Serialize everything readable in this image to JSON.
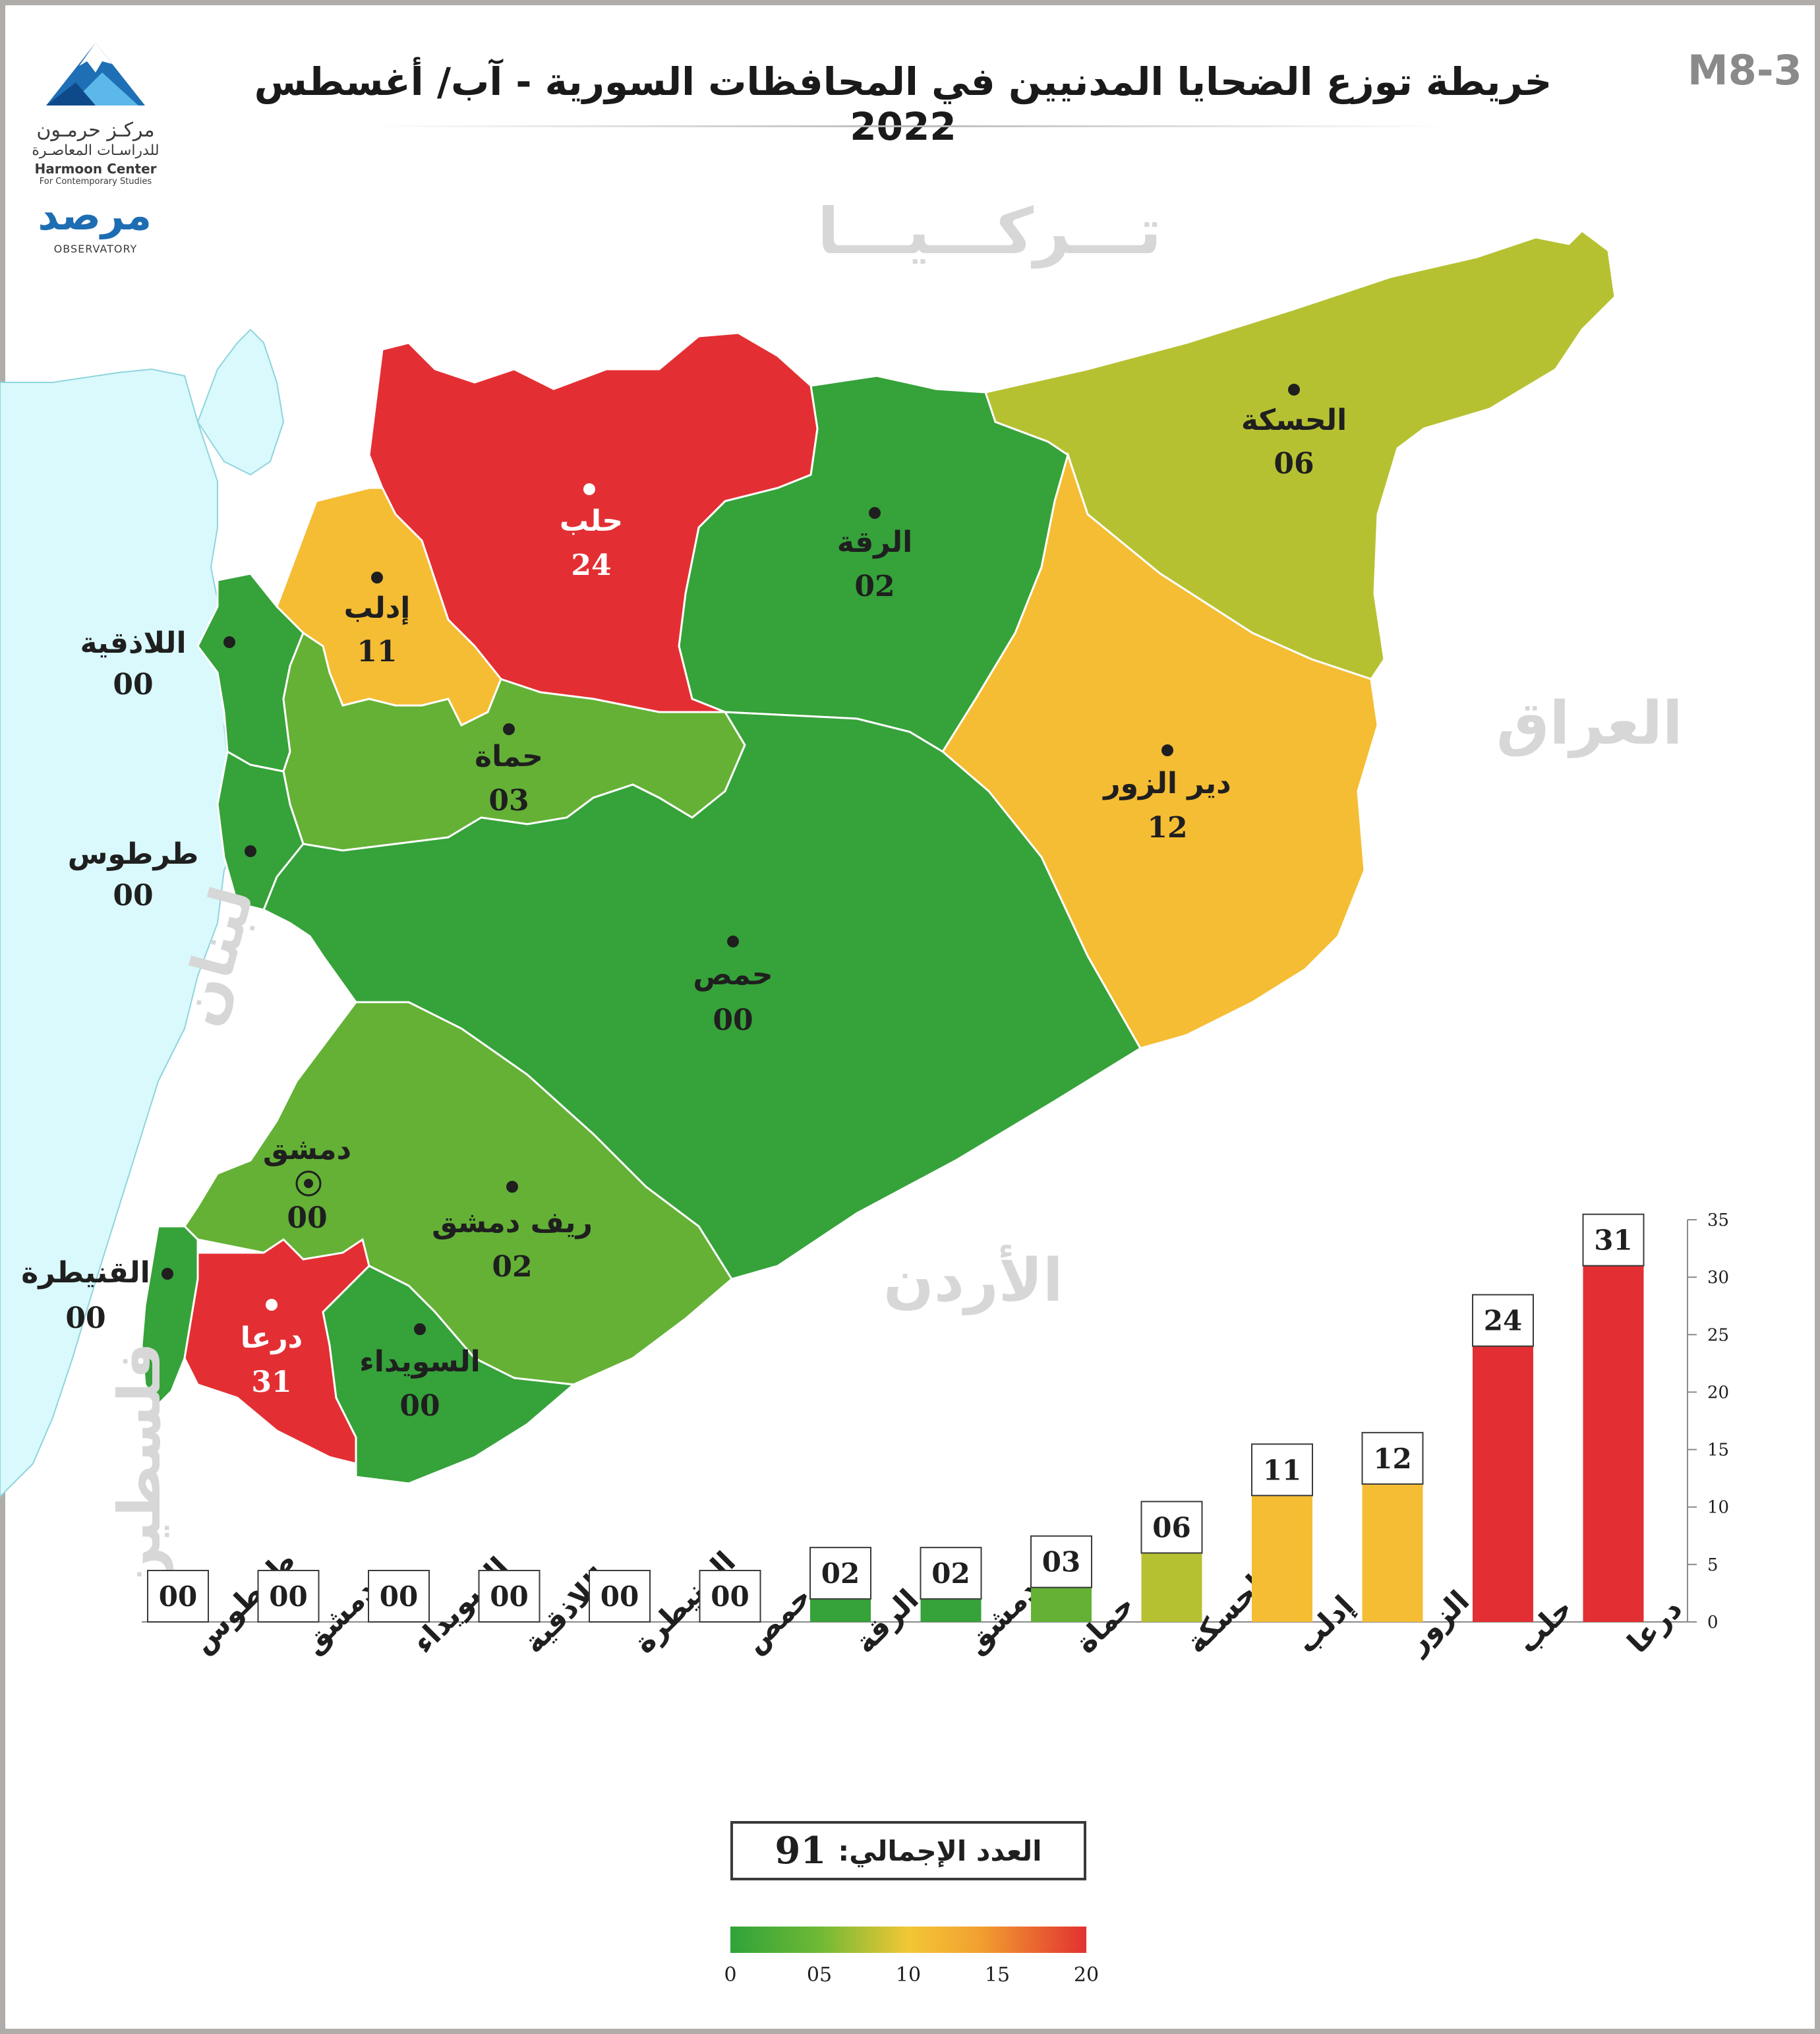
{
  "header": {
    "title": "خريطة توزع الضحايا المدنيين في المحافظات السورية - آب/ أغسطس 2022",
    "code": "M8-3"
  },
  "logos": {
    "harmoon_ar": "مركـز حرمـون",
    "harmoon_ar_sub": "للدراسـات المعاصـرة",
    "harmoon_en": "Harmoon Center",
    "harmoon_en_sub": "For Contemporary Studies",
    "observatory_ar": "مرصد",
    "observatory_en": "OBSERVATORY"
  },
  "countries": {
    "turkey": "تـــركـــيـــا",
    "iraq": "العراق",
    "jordan": "الأردن",
    "lebanon": "لبنان",
    "palestine": "فلسطين"
  },
  "governorates": [
    {
      "id": "aleppo",
      "name": "حلب",
      "value": "24"
    },
    {
      "id": "idlib",
      "name": "إدلب",
      "value": "11"
    },
    {
      "id": "raqqa",
      "name": "الرقة",
      "value": "02"
    },
    {
      "id": "hasakah",
      "name": "الحسكة",
      "value": "06"
    },
    {
      "id": "deir",
      "name": "دير الزور",
      "value": "12"
    },
    {
      "id": "latakia",
      "name": "اللاذقية",
      "value": "00"
    },
    {
      "id": "hama",
      "name": "حماة",
      "value": "03"
    },
    {
      "id": "tartus",
      "name": "طرطوس",
      "value": "00"
    },
    {
      "id": "homs",
      "name": "حمص",
      "value": "00"
    },
    {
      "id": "damascus",
      "name": "دمشق",
      "value": "00"
    },
    {
      "id": "rif",
      "name": "ريف دمشق",
      "value": "02"
    },
    {
      "id": "quneitra",
      "name": "القنيطرة",
      "value": "00"
    },
    {
      "id": "daraa",
      "name": "درعا",
      "value": "31"
    },
    {
      "id": "suwayda",
      "name": "السويداء",
      "value": "00"
    }
  ],
  "colors": {
    "zero": "#36a23a",
    "low": "#64b136",
    "mid_low": "#b6c132",
    "mid": "#f5bd34",
    "high": "#e32f33",
    "sea": "#d9f9fc"
  },
  "chart_data": {
    "type": "bar",
    "categories": [
      "طرطوس",
      "دمشق",
      "السويداء",
      "اللاذقية",
      "القنيطرة",
      "حمص",
      "الرقة",
      "ريف دمشق",
      "حماة",
      "الحسكة",
      "إدلب",
      "دير الزور",
      "حلب",
      "درعا"
    ],
    "values": [
      0,
      0,
      0,
      0,
      0,
      0,
      2,
      2,
      3,
      6,
      11,
      12,
      24,
      31
    ],
    "value_labels": [
      "00",
      "00",
      "00",
      "00",
      "00",
      "00",
      "02",
      "02",
      "03",
      "06",
      "11",
      "12",
      "24",
      "31"
    ],
    "bar_colors": [
      "#36a23a",
      "#36a23a",
      "#36a23a",
      "#36a23a",
      "#36a23a",
      "#36a23a",
      "#36a23a",
      "#36a23a",
      "#64b136",
      "#b6c132",
      "#f5bd34",
      "#f5bd34",
      "#e32f33",
      "#e32f33"
    ],
    "ylim": [
      0,
      35
    ],
    "yticks": [
      "0",
      "5",
      "10",
      "15",
      "20",
      "25",
      "30",
      "35"
    ],
    "y_axis_side": "right",
    "grid": false
  },
  "total": {
    "label": "العدد الإجمالي:",
    "value": "91"
  },
  "legend": {
    "ticks": [
      "0",
      "05",
      "10",
      "15",
      "20"
    ]
  }
}
